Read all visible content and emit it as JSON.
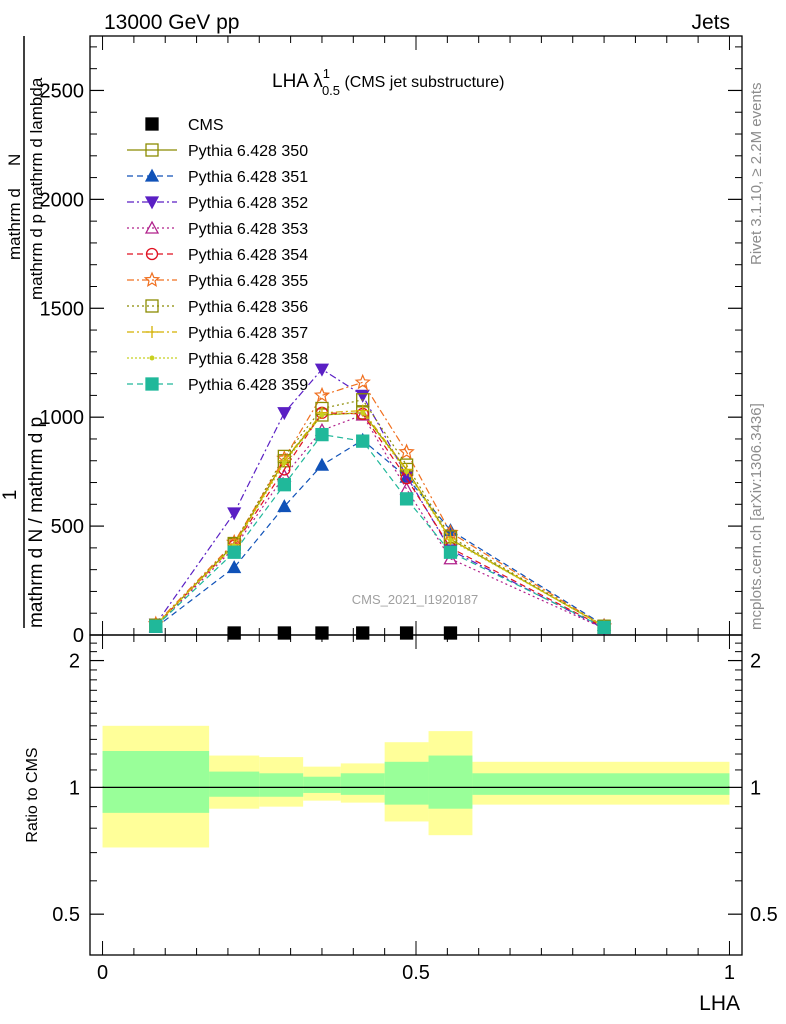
{
  "header": {
    "left": "13000 GeV pp",
    "right": "Jets"
  },
  "side_labels": {
    "rivet": "Rivet 3.1.10, ≥ 2.2M events",
    "mcplots": "mcplots.cern.ch [arXiv:1306.3436]"
  },
  "watermark": "CMS_2021_I1920187",
  "plot_title": {
    "main": "LHA λ",
    "sup": "1",
    "sub": "0.5",
    "tail": " (CMS jet substructure)"
  },
  "chart_data": [
    {
      "type": "line",
      "panel": "main",
      "ylabel": "1 / mathrm d N / mathrm d p_T mathrm d p_T mathrm d lambda d^2N",
      "ylabel_lines": [
        "1",
        "mathrm d N / mathrm d p",
        "mathrm d p",
        "mathrm d lambda",
        "mathrm d",
        "N"
      ],
      "xlim": [
        -0.02,
        1.02
      ],
      "ylim": [
        0,
        2750
      ],
      "yticks": [
        0,
        500,
        1000,
        1500,
        2000,
        2500
      ],
      "yticklabels": [
        "0",
        "500",
        "1000",
        "1500",
        "2000",
        "2500"
      ],
      "x": [
        0.085,
        0.21,
        0.29,
        0.35,
        0.415,
        0.485,
        0.555,
        0.8
      ],
      "series": [
        {
          "name": "CMS",
          "style": "data",
          "color": "#000000",
          "marker": "square-filled",
          "x": [
            0.21,
            0.29,
            0.35,
            0.415,
            0.485,
            0.555
          ],
          "values": [
            0,
            0,
            0,
            0,
            0,
            0
          ]
        },
        {
          "name": "Pythia 6.428 350",
          "color": "#8b8b00",
          "dash": "",
          "marker": "square-open",
          "values": [
            45,
            415,
            800,
            1010,
            1020,
            760,
            440,
            40
          ]
        },
        {
          "name": "Pythia 6.428 351",
          "color": "#1052b8",
          "dash": "6,4",
          "marker": "triangle-up-filled",
          "values": [
            35,
            310,
            590,
            780,
            895,
            725,
            480,
            45
          ]
        },
        {
          "name": "Pythia 6.428 352",
          "color": "#5a1fc4",
          "dash": "7,3,2,3",
          "marker": "triangle-down-filled",
          "values": [
            50,
            560,
            1020,
            1220,
            1100,
            730,
            390,
            30
          ]
        },
        {
          "name": "Pythia 6.428 353",
          "color": "#b0208b",
          "dash": "2,3",
          "marker": "triangle-up-open",
          "values": [
            40,
            400,
            730,
            940,
            1010,
            670,
            350,
            30
          ]
        },
        {
          "name": "Pythia 6.428 354",
          "color": "#e01020",
          "dash": "6,4",
          "marker": "circle-open",
          "values": [
            45,
            410,
            760,
            1020,
            1015,
            720,
            400,
            35
          ]
        },
        {
          "name": "Pythia 6.428 355",
          "color": "#f07020",
          "dash": "7,3,2,3",
          "marker": "star-open",
          "values": [
            50,
            425,
            810,
            1100,
            1160,
            840,
            470,
            40
          ]
        },
        {
          "name": "Pythia 6.428 356",
          "color": "#8b8b00",
          "dash": "2,3",
          "marker": "square-open",
          "values": [
            45,
            420,
            820,
            1040,
            1080,
            780,
            450,
            40
          ]
        },
        {
          "name": "Pythia 6.428 357",
          "color": "#d4b000",
          "dash": "7,3,2,3",
          "marker": "plus",
          "values": [
            45,
            415,
            800,
            1020,
            1030,
            760,
            440,
            40
          ]
        },
        {
          "name": "Pythia 6.428 358",
          "color": "#c8d020",
          "dash": "2,2",
          "marker": "dot",
          "values": [
            45,
            410,
            790,
            1010,
            1020,
            750,
            435,
            40
          ]
        },
        {
          "name": "Pythia 6.428 359",
          "color": "#20b89a",
          "dash": "6,4",
          "marker": "square-filled",
          "values": [
            40,
            380,
            690,
            920,
            890,
            625,
            380,
            35
          ]
        }
      ]
    },
    {
      "type": "area",
      "panel": "ratio",
      "ylabel": "Ratio to CMS",
      "xlabel": "LHA",
      "xlim": [
        -0.02,
        1.02
      ],
      "ylim": [
        0.4,
        2.3
      ],
      "yticks": [
        0.5,
        1,
        2
      ],
      "yticklabels": [
        "0.5",
        "1",
        "2"
      ],
      "xticks": [
        0,
        0.5,
        1
      ],
      "xticklabels": [
        "0",
        "0.5",
        "1"
      ],
      "bins": [
        {
          "x0": 0.0,
          "x1": 0.17,
          "outer": [
            0.72,
            1.4
          ],
          "inner": [
            0.87,
            1.22
          ]
        },
        {
          "x0": 0.17,
          "x1": 0.25,
          "outer": [
            0.89,
            1.19
          ],
          "inner": [
            0.95,
            1.09
          ]
        },
        {
          "x0": 0.25,
          "x1": 0.32,
          "outer": [
            0.9,
            1.18
          ],
          "inner": [
            0.95,
            1.08
          ]
        },
        {
          "x0": 0.32,
          "x1": 0.38,
          "outer": [
            0.93,
            1.12
          ],
          "inner": [
            0.97,
            1.06
          ]
        },
        {
          "x0": 0.38,
          "x1": 0.45,
          "outer": [
            0.92,
            1.14
          ],
          "inner": [
            0.96,
            1.08
          ]
        },
        {
          "x0": 0.45,
          "x1": 0.52,
          "outer": [
            0.83,
            1.28
          ],
          "inner": [
            0.91,
            1.15
          ]
        },
        {
          "x0": 0.52,
          "x1": 0.59,
          "outer": [
            0.77,
            1.36
          ],
          "inner": [
            0.89,
            1.19
          ]
        },
        {
          "x0": 0.59,
          "x1": 1.0,
          "outer": [
            0.91,
            1.15
          ],
          "inner": [
            0.96,
            1.08
          ]
        }
      ],
      "band_colors": {
        "outer": "#ffff99",
        "inner": "#99ff99"
      }
    }
  ]
}
